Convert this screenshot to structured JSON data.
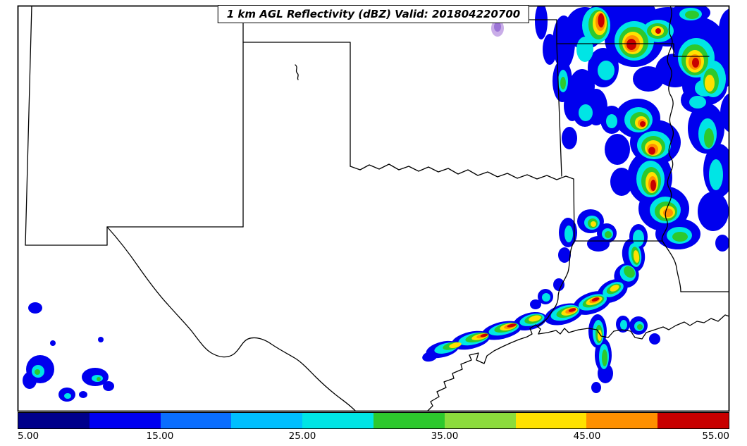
{
  "figure": {
    "title": "1 km AGL Reflectivity (dBZ) Valid: 201804220700",
    "type": "radar-reflectivity-map",
    "valid_time": "201804220700"
  },
  "colorbar": {
    "unit": "dBZ",
    "min": 5.0,
    "max": 55.0,
    "ticks": [
      "5.00",
      "15.00",
      "25.00",
      "35.00",
      "45.00",
      "55.00"
    ],
    "segments": [
      {
        "from": 5,
        "to": 10,
        "color": "#00008B"
      },
      {
        "from": 10,
        "to": 15,
        "color": "#0000F0"
      },
      {
        "from": 15,
        "to": 20,
        "color": "#0A6EFF"
      },
      {
        "from": 20,
        "to": 25,
        "color": "#00BFFF"
      },
      {
        "from": 25,
        "to": 30,
        "color": "#00E5E5"
      },
      {
        "from": 30,
        "to": 35,
        "color": "#2DC92D"
      },
      {
        "from": 35,
        "to": 40,
        "color": "#8CDC3C"
      },
      {
        "from": 40,
        "to": 45,
        "color": "#FFE100"
      },
      {
        "from": 45,
        "to": 50,
        "color": "#FF9000"
      },
      {
        "from": 50,
        "to": 55,
        "color": "#C80000"
      }
    ]
  },
  "radar_echoes": {
    "areas": [
      {
        "location": "northeast corner of domain (NE Oklahoma / N Arkansas / Missouri)",
        "max_dbz": 55,
        "character": "widespread multicell cluster"
      },
      {
        "location": "north-south band over eastern Arkansas along the Mississippi River",
        "max_dbz": 55,
        "character": "line of strong cells with stratiform fringe"
      },
      {
        "location": "SW-NE squall line from southeast Texas into western Louisiana",
        "max_dbz": 55,
        "character": "narrow bowing line with embedded red cores"
      },
      {
        "location": "far southwest (Trans-Pecos / northern Mexico)",
        "max_dbz": 30,
        "character": "small isolated weak cells"
      }
    ]
  }
}
